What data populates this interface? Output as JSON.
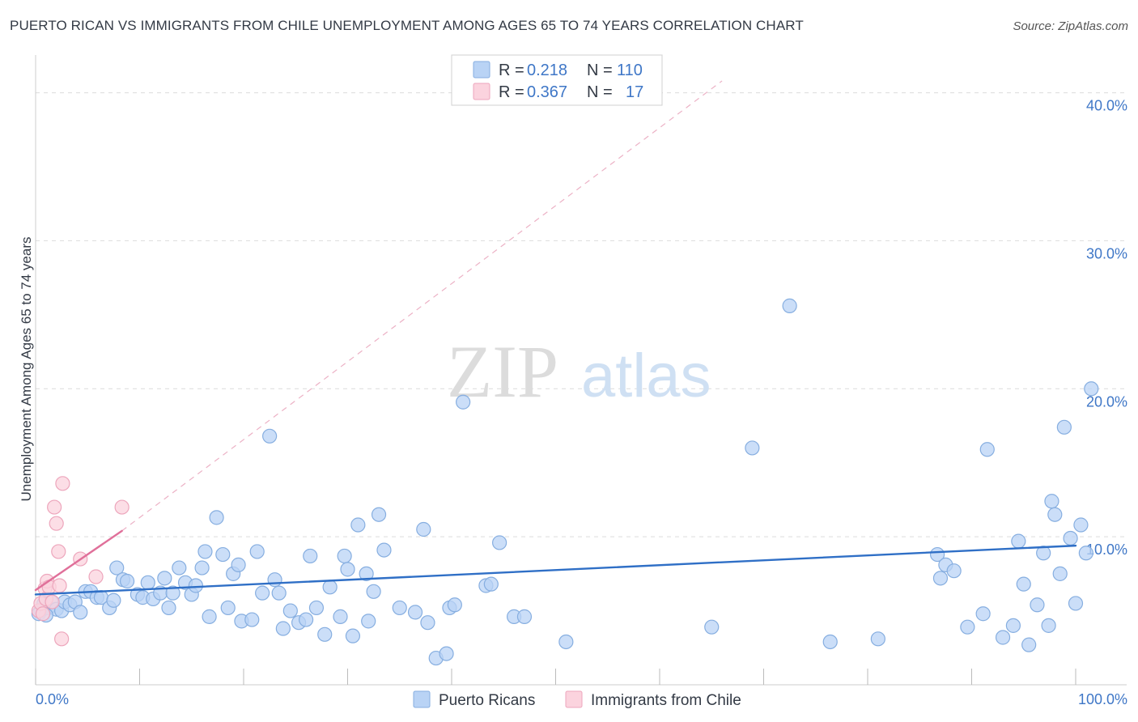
{
  "title": "PUERTO RICAN VS IMMIGRANTS FROM CHILE UNEMPLOYMENT AMONG AGES 65 TO 74 YEARS CORRELATION CHART",
  "source": "Source: ZipAtlas.com",
  "watermark": {
    "zip": "ZIP",
    "atlas": "atlas"
  },
  "colors": {
    "blue_fill": "#b9d3f5",
    "blue_stroke": "#86aee0",
    "blue_line": "#2f6fc6",
    "pink_fill": "#fbd3de",
    "pink_stroke": "#eda6bc",
    "pink_line": "#e0709a",
    "grid": "#dcdcdc"
  },
  "legend": {
    "rows": [
      {
        "r_label": "R =",
        "r_value": "0.218",
        "n_label": "N =",
        "n_value": "110"
      },
      {
        "r_label": "R =",
        "r_value": "0.367",
        "n_label": "N =",
        "n_value": "17"
      }
    ]
  },
  "chart_data": {
    "type": "scatter",
    "title": "PUERTO RICAN VS IMMIGRANTS FROM CHILE UNEMPLOYMENT AMONG AGES 65 TO 74 YEARS CORRELATION CHART",
    "xlabel": "",
    "ylabel": "Unemployment Among Ages 65 to 74 years",
    "xlim": [
      0,
      100
    ],
    "ylim": [
      0,
      42
    ],
    "y_ticks": [
      {
        "value": 10,
        "label": "10.0%"
      },
      {
        "value": 20,
        "label": "20.0%"
      },
      {
        "value": 30,
        "label": "30.0%"
      },
      {
        "value": 40,
        "label": "40.0%"
      }
    ],
    "x_ticks": [
      0,
      10,
      20,
      30,
      40,
      50,
      60,
      70,
      80,
      90,
      100
    ],
    "x_tick_labels": {
      "min": "0.0%",
      "max": "100.0%"
    },
    "grid": true,
    "legend_position": "top-center",
    "series": [
      {
        "name": "Puerto Ricans",
        "trend": {
          "x0": 0,
          "y0": 6.1,
          "x1": 100,
          "y1": 9.4
        },
        "points": [
          [
            0.5,
            5.0
          ],
          [
            0.8,
            5.5
          ],
          [
            1.2,
            5.2
          ],
          [
            1.5,
            5.6
          ],
          [
            2.0,
            5.1
          ],
          [
            2.5,
            5.0
          ],
          [
            2.8,
            5.6
          ],
          [
            3.3,
            5.4
          ],
          [
            3.8,
            5.6
          ],
          [
            4.3,
            4.9
          ],
          [
            4.8,
            6.3
          ],
          [
            5.3,
            6.3
          ],
          [
            5.9,
            5.9
          ],
          [
            6.3,
            5.9
          ],
          [
            7.1,
            5.2
          ],
          [
            7.5,
            5.7
          ],
          [
            7.8,
            7.9
          ],
          [
            8.4,
            7.1
          ],
          [
            8.8,
            7.0
          ],
          [
            9.8,
            6.1
          ],
          [
            10.3,
            5.9
          ],
          [
            10.8,
            6.9
          ],
          [
            11.3,
            5.8
          ],
          [
            12.0,
            6.2
          ],
          [
            12.4,
            7.2
          ],
          [
            12.8,
            5.2
          ],
          [
            13.2,
            6.2
          ],
          [
            13.8,
            7.9
          ],
          [
            14.4,
            6.9
          ],
          [
            15.0,
            6.1
          ],
          [
            15.4,
            6.7
          ],
          [
            16.0,
            7.9
          ],
          [
            16.3,
            9.0
          ],
          [
            16.7,
            4.6
          ],
          [
            17.4,
            11.3
          ],
          [
            18.0,
            8.8
          ],
          [
            18.5,
            5.2
          ],
          [
            19.0,
            7.5
          ],
          [
            19.5,
            8.1
          ],
          [
            19.8,
            4.3
          ],
          [
            20.8,
            4.4
          ],
          [
            21.3,
            9.0
          ],
          [
            21.8,
            6.2
          ],
          [
            22.5,
            16.8
          ],
          [
            23.0,
            7.1
          ],
          [
            23.4,
            6.2
          ],
          [
            23.8,
            3.8
          ],
          [
            24.5,
            5.0
          ],
          [
            25.3,
            4.2
          ],
          [
            26.0,
            4.4
          ],
          [
            26.4,
            8.7
          ],
          [
            27.0,
            5.2
          ],
          [
            27.8,
            3.4
          ],
          [
            28.3,
            6.6
          ],
          [
            29.3,
            4.6
          ],
          [
            29.7,
            8.7
          ],
          [
            30.0,
            7.8
          ],
          [
            30.5,
            3.3
          ],
          [
            31.0,
            10.8
          ],
          [
            31.8,
            7.5
          ],
          [
            32.0,
            4.3
          ],
          [
            32.5,
            6.3
          ],
          [
            33.0,
            11.5
          ],
          [
            33.5,
            9.1
          ],
          [
            35.0,
            5.2
          ],
          [
            36.5,
            4.9
          ],
          [
            37.3,
            10.5
          ],
          [
            37.7,
            4.2
          ],
          [
            38.5,
            1.8
          ],
          [
            39.5,
            2.1
          ],
          [
            39.8,
            5.2
          ],
          [
            40.3,
            5.4
          ],
          [
            41.1,
            19.1
          ],
          [
            43.3,
            6.7
          ],
          [
            43.8,
            6.8
          ],
          [
            44.6,
            9.6
          ],
          [
            46.0,
            4.6
          ],
          [
            47.0,
            4.6
          ],
          [
            51.0,
            2.9
          ],
          [
            65.0,
            3.9
          ],
          [
            68.9,
            16.0
          ],
          [
            72.5,
            25.6
          ],
          [
            76.4,
            2.9
          ],
          [
            81.0,
            3.1
          ],
          [
            86.7,
            8.8
          ],
          [
            87.0,
            7.2
          ],
          [
            87.5,
            8.1
          ],
          [
            88.3,
            7.7
          ],
          [
            89.6,
            3.9
          ],
          [
            91.1,
            4.8
          ],
          [
            91.5,
            15.9
          ],
          [
            93.0,
            3.2
          ],
          [
            94.0,
            4.0
          ],
          [
            94.5,
            9.7
          ],
          [
            95.0,
            6.8
          ],
          [
            95.5,
            2.7
          ],
          [
            96.3,
            5.4
          ],
          [
            96.9,
            8.9
          ],
          [
            97.4,
            4.0
          ],
          [
            97.7,
            12.4
          ],
          [
            98.0,
            11.5
          ],
          [
            98.5,
            7.5
          ],
          [
            98.9,
            17.4
          ],
          [
            99.5,
            9.9
          ],
          [
            100.0,
            5.5
          ],
          [
            100.5,
            10.8
          ],
          [
            101.0,
            8.9
          ],
          [
            101.5,
            20.0
          ],
          [
            0.3,
            4.8
          ],
          [
            1.0,
            4.7
          ]
        ]
      },
      {
        "name": "Immigrants from Chile",
        "trend": {
          "x0": 0,
          "y0": 6.4,
          "x1": 8.3,
          "y1": 10.4
        },
        "trend_dashed": {
          "x0": 8.3,
          "y0": 10.4,
          "x1": 66,
          "y1": 40.8
        },
        "points": [
          [
            0.3,
            5.0
          ],
          [
            0.5,
            5.5
          ],
          [
            0.7,
            4.8
          ],
          [
            0.9,
            6.5
          ],
          [
            1.0,
            5.8
          ],
          [
            1.1,
            7.0
          ],
          [
            1.3,
            6.6
          ],
          [
            1.6,
            5.6
          ],
          [
            1.8,
            12.0
          ],
          [
            2.0,
            10.9
          ],
          [
            2.2,
            9.0
          ],
          [
            2.3,
            6.7
          ],
          [
            2.5,
            3.1
          ],
          [
            2.6,
            13.6
          ],
          [
            4.3,
            8.5
          ],
          [
            5.8,
            7.3
          ],
          [
            8.3,
            12.0
          ]
        ]
      }
    ]
  }
}
